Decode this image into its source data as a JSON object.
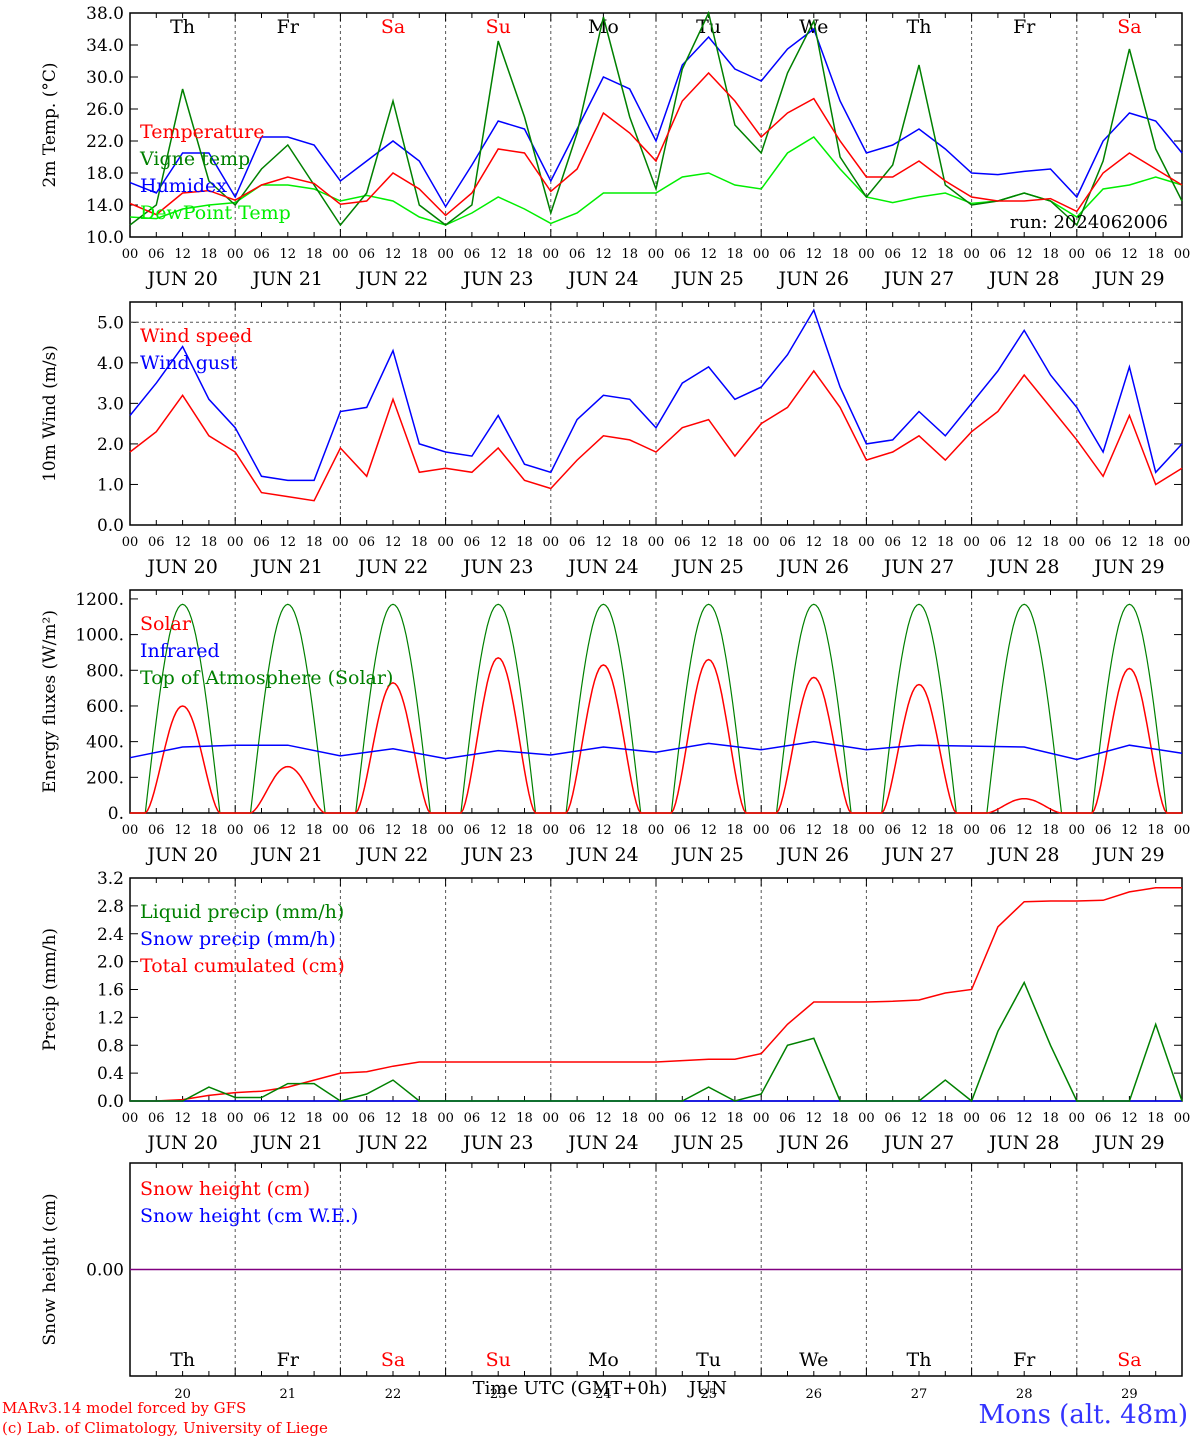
{
  "chart_data": [
    {
      "type": "line",
      "ylabel": "2m Temp. (°C)",
      "ylim": [
        10,
        38
      ],
      "yticks": [
        "10.0",
        "14.0",
        "18.0",
        "22.0",
        "26.0",
        "30.0",
        "34.0",
        "38.0"
      ],
      "annotation": "run: 2024062006",
      "grid": true,
      "legend_placement": "left",
      "x_hours": [
        0,
        6,
        12,
        18,
        24,
        30,
        36,
        42,
        48,
        54,
        60,
        66,
        72,
        78,
        84,
        90,
        96,
        102,
        108,
        114,
        120,
        126,
        132,
        138,
        144,
        150,
        156,
        162,
        168,
        174,
        180,
        186,
        192,
        198,
        204,
        210,
        216,
        222,
        228,
        234,
        240
      ],
      "series": [
        {
          "name": "Temperature",
          "color": "#ff0000",
          "values": [
            14.2,
            12.8,
            15.5,
            15.8,
            14.6,
            16.5,
            17.5,
            16.7,
            14.1,
            14.5,
            18.0,
            16.0,
            12.7,
            15.5,
            21.0,
            20.5,
            15.7,
            18.5,
            25.5,
            23.0,
            19.5,
            27.0,
            30.5,
            27.0,
            22.5,
            25.5,
            27.3,
            22.0,
            17.5,
            17.5,
            19.5,
            17.0,
            15.0,
            14.5,
            14.5,
            14.8,
            13.2,
            18.0,
            20.5,
            18.5,
            16.5
          ]
        },
        {
          "name": "Vigne temp",
          "color": "#008000",
          "values": [
            11.5,
            14.0,
            28.5,
            17.0,
            14.0,
            18.5,
            21.5,
            16.5,
            11.5,
            15.5,
            27.0,
            14.0,
            11.5,
            14.0,
            34.5,
            25.0,
            13.0,
            23.0,
            37.5,
            25.0,
            16.0,
            31.0,
            38.0,
            24.0,
            20.5,
            30.5,
            37.0,
            20.0,
            15.0,
            19.0,
            31.5,
            16.5,
            14.0,
            14.5,
            15.5,
            14.5,
            11.5,
            19.5,
            33.5,
            21.0,
            14.5
          ]
        },
        {
          "name": "Humidex",
          "color": "#0000ff",
          "values": [
            16.8,
            15.5,
            20.5,
            20.5,
            15.0,
            22.5,
            22.5,
            21.5,
            17.0,
            19.5,
            22.0,
            19.5,
            13.8,
            19.0,
            24.5,
            23.5,
            17.0,
            23.5,
            30.0,
            28.5,
            22.0,
            31.5,
            35.0,
            31.0,
            29.5,
            33.5,
            36.0,
            27.0,
            20.5,
            21.5,
            23.5,
            21.0,
            18.0,
            17.8,
            18.2,
            18.5,
            15.0,
            22.0,
            25.5,
            24.5,
            20.5
          ]
        },
        {
          "name": "DewPoint Temp",
          "color": "#00ee00",
          "values": [
            12.5,
            12.3,
            13.5,
            14.0,
            14.3,
            16.5,
            16.5,
            16.0,
            14.5,
            15.2,
            14.5,
            12.5,
            11.5,
            13.0,
            15.0,
            13.5,
            11.7,
            13.0,
            15.5,
            15.5,
            15.5,
            17.5,
            18.0,
            16.5,
            16.0,
            20.5,
            22.5,
            18.5,
            15.0,
            14.3,
            15.0,
            15.5,
            14.2,
            14.5,
            15.5,
            14.5,
            12.5,
            16.0,
            16.5,
            17.5,
            16.5
          ]
        }
      ]
    },
    {
      "type": "line",
      "ylabel": "10m Wind (m/s)",
      "ylim": [
        0,
        5.5
      ],
      "yticks": [
        "0.0",
        "1.0",
        "2.0",
        "3.0",
        "4.0",
        "5.0"
      ],
      "grid": true,
      "legend_placement": "left",
      "x_hours": [
        0,
        6,
        12,
        18,
        24,
        30,
        36,
        42,
        48,
        54,
        60,
        66,
        72,
        78,
        84,
        90,
        96,
        102,
        108,
        114,
        120,
        126,
        132,
        138,
        144,
        150,
        156,
        162,
        168,
        174,
        180,
        186,
        192,
        198,
        204,
        210,
        216,
        222,
        228,
        234,
        240
      ],
      "series": [
        {
          "name": "Wind speed",
          "color": "#ff0000",
          "values": [
            1.8,
            2.3,
            3.2,
            2.2,
            1.8,
            0.8,
            0.7,
            0.6,
            1.9,
            1.2,
            3.1,
            1.3,
            1.4,
            1.3,
            1.9,
            1.1,
            0.9,
            1.6,
            2.2,
            2.1,
            1.8,
            2.4,
            2.6,
            1.7,
            2.5,
            2.9,
            3.8,
            2.9,
            1.6,
            1.8,
            2.2,
            1.6,
            2.3,
            2.8,
            3.7,
            2.9,
            2.1,
            1.2,
            2.7,
            1.0,
            1.4
          ]
        },
        {
          "name": "Wind gust",
          "color": "#0000ff",
          "values": [
            2.7,
            3.5,
            4.4,
            3.1,
            2.4,
            1.2,
            1.1,
            1.1,
            2.8,
            2.9,
            4.3,
            2.0,
            1.8,
            1.7,
            2.7,
            1.5,
            1.3,
            2.6,
            3.2,
            3.1,
            2.4,
            3.5,
            3.9,
            3.1,
            3.4,
            4.2,
            5.3,
            3.4,
            2.0,
            2.1,
            2.8,
            2.2,
            3.0,
            3.8,
            4.8,
            3.7,
            2.9,
            1.8,
            3.9,
            1.3,
            2.0
          ]
        }
      ]
    },
    {
      "type": "line",
      "ylabel": "Energy fluxes (W/m²)",
      "ylim": [
        0,
        1250
      ],
      "yticks": [
        "0.",
        "200.",
        "400.",
        "600.",
        "800.",
        "1000.",
        "1200."
      ],
      "grid": true,
      "legend_placement": "left",
      "toa_peak": 1170,
      "daylight_hours": [
        3.5,
        20.5
      ],
      "solar_peaks": [
        600,
        260,
        730,
        870,
        830,
        860,
        760,
        720,
        80,
        810
      ],
      "series": [
        {
          "name": "Solar",
          "color": "#ff0000"
        },
        {
          "name": "Infrared",
          "color": "#0000ff",
          "x_hours": [
            0,
            12,
            24,
            36,
            48,
            60,
            72,
            84,
            96,
            108,
            120,
            132,
            144,
            156,
            168,
            180,
            192,
            204,
            216,
            228,
            240
          ],
          "values": [
            310,
            370,
            380,
            380,
            320,
            360,
            305,
            350,
            325,
            370,
            340,
            390,
            355,
            400,
            355,
            380,
            375,
            370,
            300,
            380,
            335
          ]
        },
        {
          "name": "Top of Atmosphere (Solar)",
          "color": "#008000"
        }
      ]
    },
    {
      "type": "line",
      "ylabel": "Precip (mm/h)",
      "ylim": [
        0,
        3.2
      ],
      "yticks": [
        "0.0",
        "0.4",
        "0.8",
        "1.2",
        "1.6",
        "2.0",
        "2.4",
        "2.8",
        "3.2"
      ],
      "grid": true,
      "legend_placement": "left",
      "x_hours": [
        0,
        6,
        12,
        18,
        24,
        30,
        36,
        42,
        48,
        54,
        60,
        66,
        72,
        78,
        84,
        90,
        96,
        102,
        108,
        114,
        120,
        126,
        132,
        138,
        144,
        150,
        156,
        162,
        168,
        174,
        180,
        186,
        192,
        198,
        204,
        210,
        216,
        222,
        228,
        234,
        240
      ],
      "series": [
        {
          "name": "Liquid precip (mm/h)",
          "color": "#008000",
          "values": [
            0,
            0,
            0,
            0.2,
            0.05,
            0.05,
            0.25,
            0.25,
            0,
            0.1,
            0.3,
            0,
            0,
            0,
            0,
            0,
            0,
            0,
            0,
            0,
            0,
            0,
            0.2,
            0,
            0.1,
            0.8,
            0.9,
            0,
            0,
            0,
            0,
            0.3,
            0,
            1.0,
            1.7,
            0.8,
            0,
            0,
            0,
            1.1,
            0
          ]
        },
        {
          "name": "Snow precip (mm/h)",
          "color": "#0000ff",
          "values": [
            0,
            0,
            0,
            0,
            0,
            0,
            0,
            0,
            0,
            0,
            0,
            0,
            0,
            0,
            0,
            0,
            0,
            0,
            0,
            0,
            0,
            0,
            0,
            0,
            0,
            0,
            0,
            0,
            0,
            0,
            0,
            0,
            0,
            0,
            0,
            0,
            0,
            0,
            0,
            0,
            0
          ]
        },
        {
          "name": "Total cumulated (cm)",
          "color": "#ff0000",
          "values": [
            0,
            0,
            0.02,
            0.08,
            0.12,
            0.14,
            0.2,
            0.3,
            0.4,
            0.42,
            0.5,
            0.56,
            0.56,
            0.56,
            0.56,
            0.56,
            0.56,
            0.56,
            0.56,
            0.56,
            0.56,
            0.58,
            0.6,
            0.6,
            0.68,
            1.1,
            1.42,
            1.42,
            1.42,
            1.43,
            1.45,
            1.55,
            1.6,
            2.5,
            2.86,
            2.87,
            2.87,
            2.88,
            3.0,
            3.06,
            3.06
          ]
        }
      ]
    },
    {
      "type": "line",
      "ylabel": "Snow height (cm)",
      "ylim": [
        -1,
        1
      ],
      "yticks": [
        "0.00"
      ],
      "grid": true,
      "legend_placement": "left",
      "x_hours": [
        0,
        240
      ],
      "series": [
        {
          "name": "Snow height (cm)",
          "color": "#ff0000",
          "values": [
            0,
            0
          ]
        },
        {
          "name": "Snow height (cm W.E.)",
          "color": "#0000ff",
          "values": [
            0,
            0
          ]
        }
      ],
      "zero_line_color": "#800080"
    }
  ],
  "days": {
    "names": [
      "Th",
      "Fr",
      "Sa",
      "Su",
      "Mo",
      "Tu",
      "We",
      "Th",
      "Fr",
      "Sa"
    ],
    "weekend_flags": [
      false,
      false,
      true,
      true,
      false,
      false,
      false,
      false,
      false,
      true
    ],
    "dates": [
      "JUN 20",
      "JUN 21",
      "JUN 22",
      "JUN 23",
      "JUN 24",
      "JUN 25",
      "JUN 26",
      "JUN 27",
      "JUN 28",
      "JUN 29"
    ],
    "numbers": [
      "20",
      "21",
      "22",
      "23",
      "24",
      "25",
      "26",
      "27",
      "28",
      "29"
    ],
    "hour_labels": [
      "00",
      "06",
      "12",
      "18"
    ],
    "end_hour_label": "00"
  },
  "colors": {
    "weekday": "#000000",
    "weekend": "#ff0000",
    "frame": "#000000",
    "grid": "#555555"
  },
  "xlabel": "Time UTC (GMT+0h)",
  "month_label": "JUN",
  "credits": [
    "MARv3.14 model forced by GFS",
    "(c) Lab. of Climatology, University of Liege"
  ],
  "station": "Mons (alt. 48m)"
}
